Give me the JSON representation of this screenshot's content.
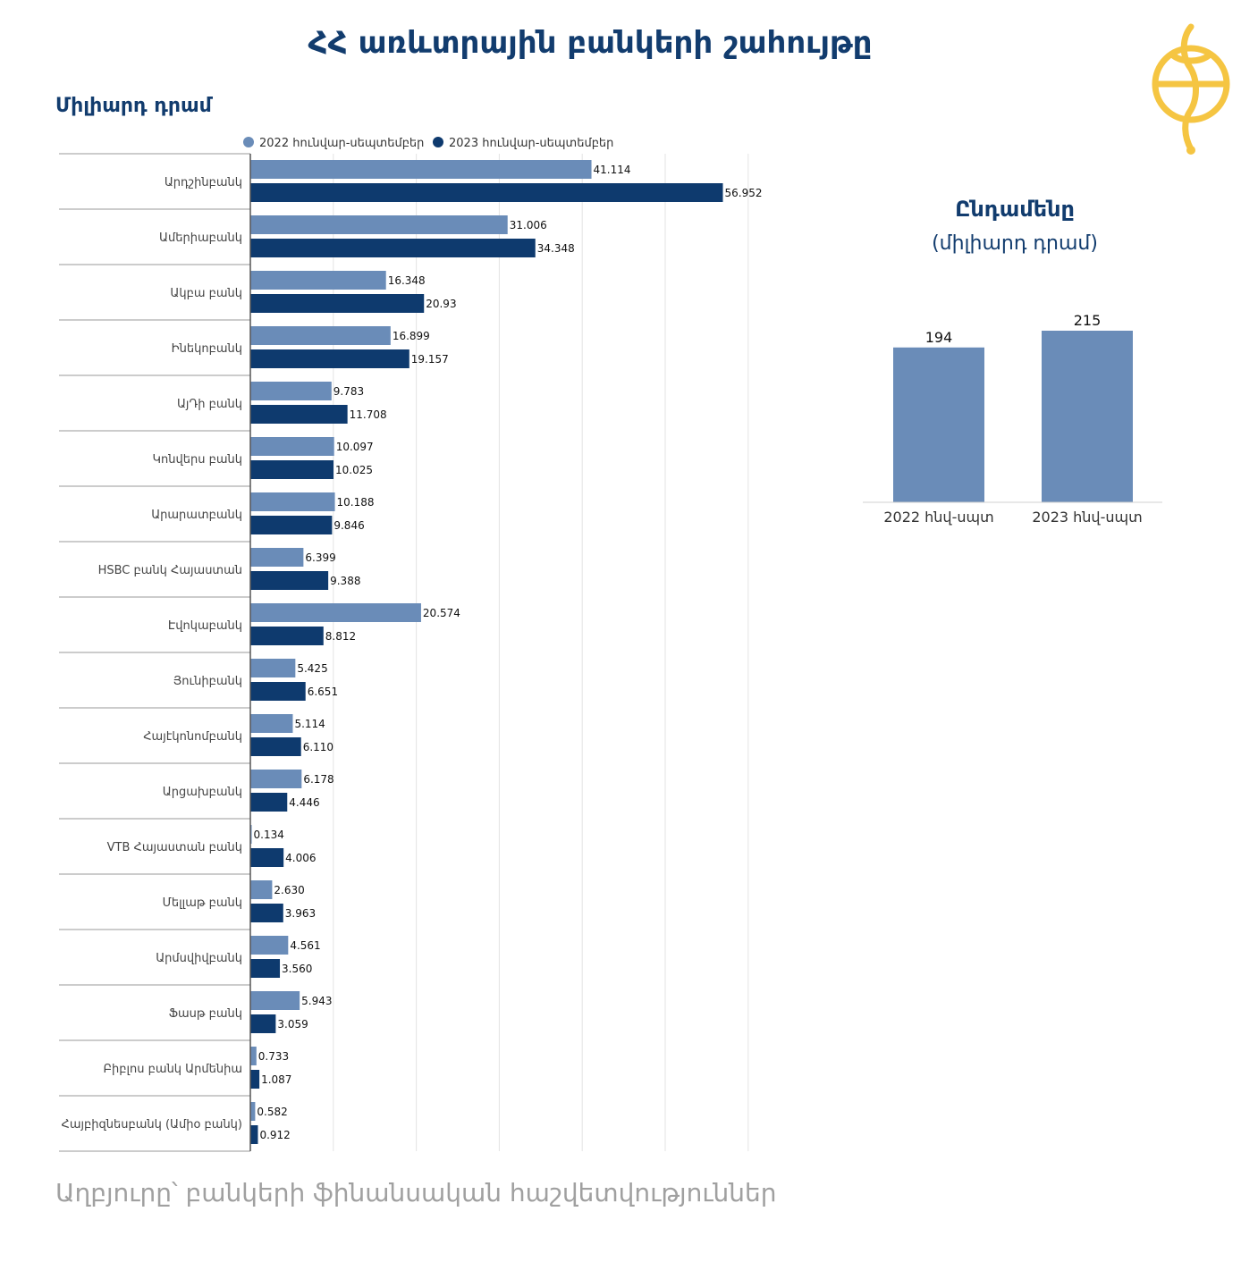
{
  "title": "ՀՀ առևտրային բանկերի շահույթը",
  "unit_label": "Միլիարդ դրամ",
  "source": "Աղբյուրը՝ բանկերի ֆինանսական հաշվետվություններ",
  "colors": {
    "series_2022": "#6a8cb8",
    "series_2023": "#0e3a6e",
    "title": "#123c6e",
    "logo": "#f5c542"
  },
  "chart_data": [
    {
      "type": "bar",
      "orientation": "horizontal",
      "legend_position": "top",
      "categories": [
        "Արդշինբանկ",
        "Ամերիաբանկ",
        "Ակբա բանկ",
        "Ինեկոբանկ",
        "ԱյԴի բանկ",
        "Կոնվերս բանկ",
        "Արարատբանկ",
        "HSBC բանկ Հայաստան",
        "Էվոկաբանկ",
        "Յունիբանկ",
        "Հայէկոնոմբանկ",
        "Արցախբանկ",
        "VTB Հայաստան բանկ",
        "Մելլաթ բանկ",
        "Արմսվիվբանկ",
        "Ֆասթ բանկ",
        "Բիբլոս բանկ Արմենիա",
        "Հայբիզնեսբանկ (Ամիօ բանկ)"
      ],
      "series": [
        {
          "name": "2022 հունվար-սեպտեմբեր",
          "values": [
            41.114,
            31.006,
            16.348,
            16.899,
            9.783,
            10.097,
            10.188,
            6.399,
            20.574,
            5.425,
            5.114,
            6.178,
            0.134,
            2.63,
            4.561,
            5.943,
            0.733,
            0.582
          ],
          "labels": [
            "41.114",
            "31.006",
            "16.348",
            "16.899",
            "9.783",
            "10.097",
            "10.188",
            "6.399",
            "20.574",
            "5.425",
            "5.114",
            "6.178",
            "0.134",
            "2.630",
            "4.561",
            "5.943",
            "0.733",
            "0.582"
          ]
        },
        {
          "name": "2023 հունվար-սեպտեմբեր",
          "values": [
            56.952,
            34.348,
            20.93,
            19.157,
            11.708,
            10.025,
            9.846,
            9.388,
            8.812,
            6.651,
            6.11,
            4.446,
            4.006,
            3.963,
            3.56,
            3.059,
            1.087,
            0.912
          ],
          "labels": [
            "56.952",
            "34.348",
            "20.93",
            "19.157",
            "11.708",
            "10.025",
            "9.846",
            "9.388",
            "8.812",
            "6.651",
            "6.110",
            "4.446",
            "4.006",
            "3.963",
            "3.560",
            "3.059",
            "1.087",
            "0.912"
          ]
        }
      ],
      "xlim": [
        0,
        60
      ],
      "grid": true
    },
    {
      "type": "bar",
      "title": "Ընդամենը",
      "subtitle": "(միլիարդ դրամ)",
      "categories": [
        "2022 հնվ-սպտ",
        "2023 հնվ-սպտ"
      ],
      "values": [
        194,
        215
      ],
      "labels": [
        "194",
        "215"
      ],
      "ylim": [
        0,
        215
      ]
    }
  ]
}
